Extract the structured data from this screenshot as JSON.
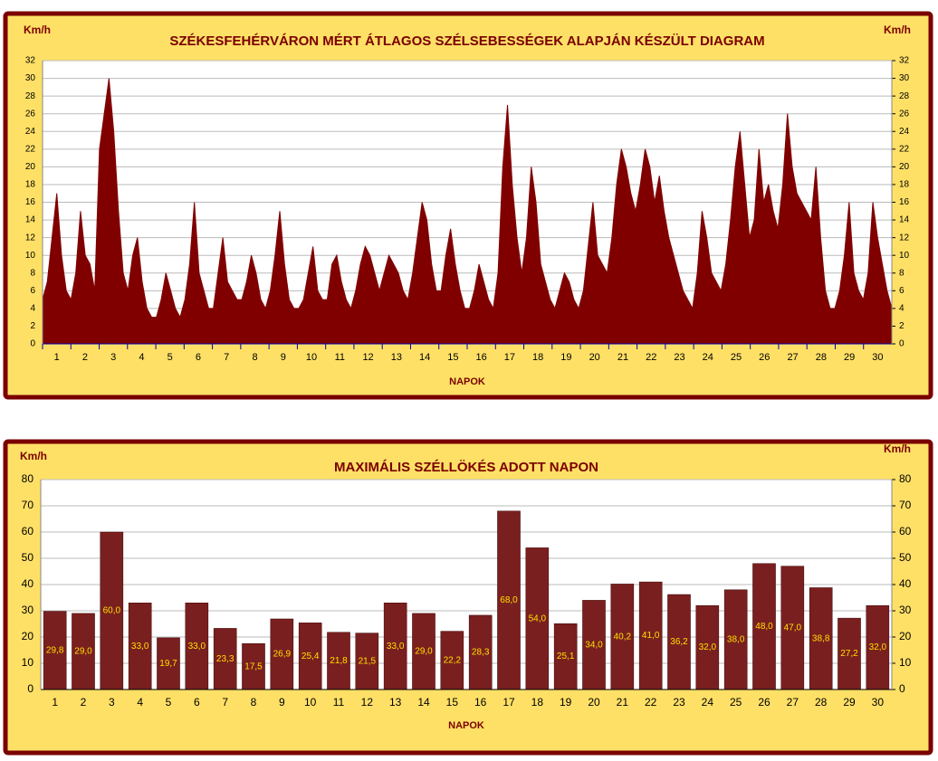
{
  "chart_data": [
    {
      "type": "area",
      "title": "SZÉKESFEHÉRVÁRON MÉRT ÁTLAGOS SZÉLSEBESSÉGEK ALAPJÁN KÉSZÜLT DIAGRAM",
      "y_label": "Km/h",
      "y2_label": "Km/h",
      "x_label": "NAPOK",
      "color": "#800000",
      "grid": true,
      "ylim": [
        0,
        32
      ],
      "yticks": [
        0,
        2,
        4,
        6,
        8,
        10,
        12,
        14,
        16,
        18,
        20,
        22,
        24,
        26,
        28,
        30,
        32
      ],
      "y2lim": [
        0,
        32
      ],
      "y2ticks": [
        0,
        2,
        4,
        6,
        8,
        10,
        12,
        14,
        16,
        18,
        20,
        22,
        24,
        26,
        28,
        30,
        32
      ],
      "day_labels": [
        "1",
        "2",
        "3",
        "4",
        "5",
        "6",
        "7",
        "8",
        "9",
        "10",
        "11",
        "12",
        "13",
        "14",
        "15",
        "16",
        "17",
        "18",
        "19",
        "20",
        "21",
        "22",
        "23",
        "24",
        "25",
        "26",
        "27",
        "28",
        "29",
        "30"
      ],
      "values": [
        5,
        7,
        12,
        17,
        10,
        6,
        5,
        8,
        15,
        10,
        9,
        6,
        22,
        26,
        30,
        24,
        15,
        8,
        6,
        10,
        12,
        7,
        4,
        3,
        3,
        5,
        8,
        6,
        4,
        3,
        5,
        9,
        16,
        8,
        6,
        4,
        4,
        8,
        12,
        7,
        6,
        5,
        5,
        7,
        10,
        8,
        5,
        4,
        6,
        10,
        15,
        9,
        5,
        4,
        4,
        5,
        8,
        11,
        6,
        5,
        5,
        9,
        10,
        7,
        5,
        4,
        6,
        9,
        11,
        10,
        8,
        6,
        8,
        10,
        9,
        8,
        6,
        5,
        8,
        12,
        16,
        14,
        9,
        6,
        6,
        10,
        13,
        9,
        6,
        4,
        4,
        6,
        9,
        7,
        5,
        4,
        8,
        20,
        27,
        18,
        12,
        8,
        12,
        20,
        16,
        9,
        7,
        5,
        4,
        6,
        8,
        7,
        5,
        4,
        6,
        11,
        16,
        10,
        9,
        8,
        12,
        18,
        22,
        20,
        17,
        15,
        18,
        22,
        20,
        16,
        19,
        15,
        12,
        10,
        8,
        6,
        5,
        4,
        8,
        15,
        12,
        8,
        7,
        6,
        9,
        14,
        20,
        24,
        18,
        12,
        14,
        22,
        16,
        18,
        15,
        13,
        18,
        26,
        20,
        17,
        16,
        15,
        14,
        20,
        12,
        6,
        4,
        4,
        6,
        10,
        16,
        8,
        6,
        5,
        8,
        16,
        12,
        9,
        6,
        4
      ]
    },
    {
      "type": "bar",
      "title": "MAXIMÁLIS SZÉLLÖKÉS ADOTT NAPON",
      "y_label": "Km/h",
      "y2_label": "Km/h",
      "x_label": "NAPOK",
      "color": "#7a1f1f",
      "label_color": "#ffe000",
      "grid": true,
      "ylim": [
        0,
        80
      ],
      "yticks": [
        0,
        10,
        20,
        30,
        40,
        50,
        60,
        70,
        80
      ],
      "y2lim": [
        0,
        80
      ],
      "y2ticks": [
        0,
        10,
        20,
        30,
        40,
        50,
        60,
        70,
        80
      ],
      "categories": [
        "1",
        "2",
        "3",
        "4",
        "5",
        "6",
        "7",
        "8",
        "9",
        "10",
        "11",
        "12",
        "13",
        "14",
        "15",
        "16",
        "17",
        "18",
        "19",
        "20",
        "21",
        "22",
        "23",
        "24",
        "25",
        "26",
        "27",
        "28",
        "29",
        "30"
      ],
      "values": [
        29.8,
        29.0,
        60.0,
        33.0,
        19.7,
        33.0,
        23.3,
        17.5,
        26.9,
        25.4,
        21.8,
        21.5,
        33.0,
        29.0,
        22.2,
        28.3,
        68.0,
        54.0,
        25.1,
        34.0,
        40.2,
        41.0,
        36.2,
        32.0,
        38.0,
        48.0,
        47.0,
        38.8,
        27.2,
        32.0
      ],
      "value_labels": [
        "29,8",
        "29,0",
        "60,0",
        "33,0",
        "19,7",
        "33,0",
        "23,3",
        "17,5",
        "26,9",
        "25,4",
        "21,8",
        "21,5",
        "33,0",
        "29,0",
        "22,2",
        "28,3",
        "68,0",
        "54,0",
        "25,1",
        "34,0",
        "40,2",
        "41,0",
        "36,2",
        "32,0",
        "38,0",
        "48,0",
        "47,0",
        "38,8",
        "27,2",
        "32,0"
      ]
    }
  ]
}
